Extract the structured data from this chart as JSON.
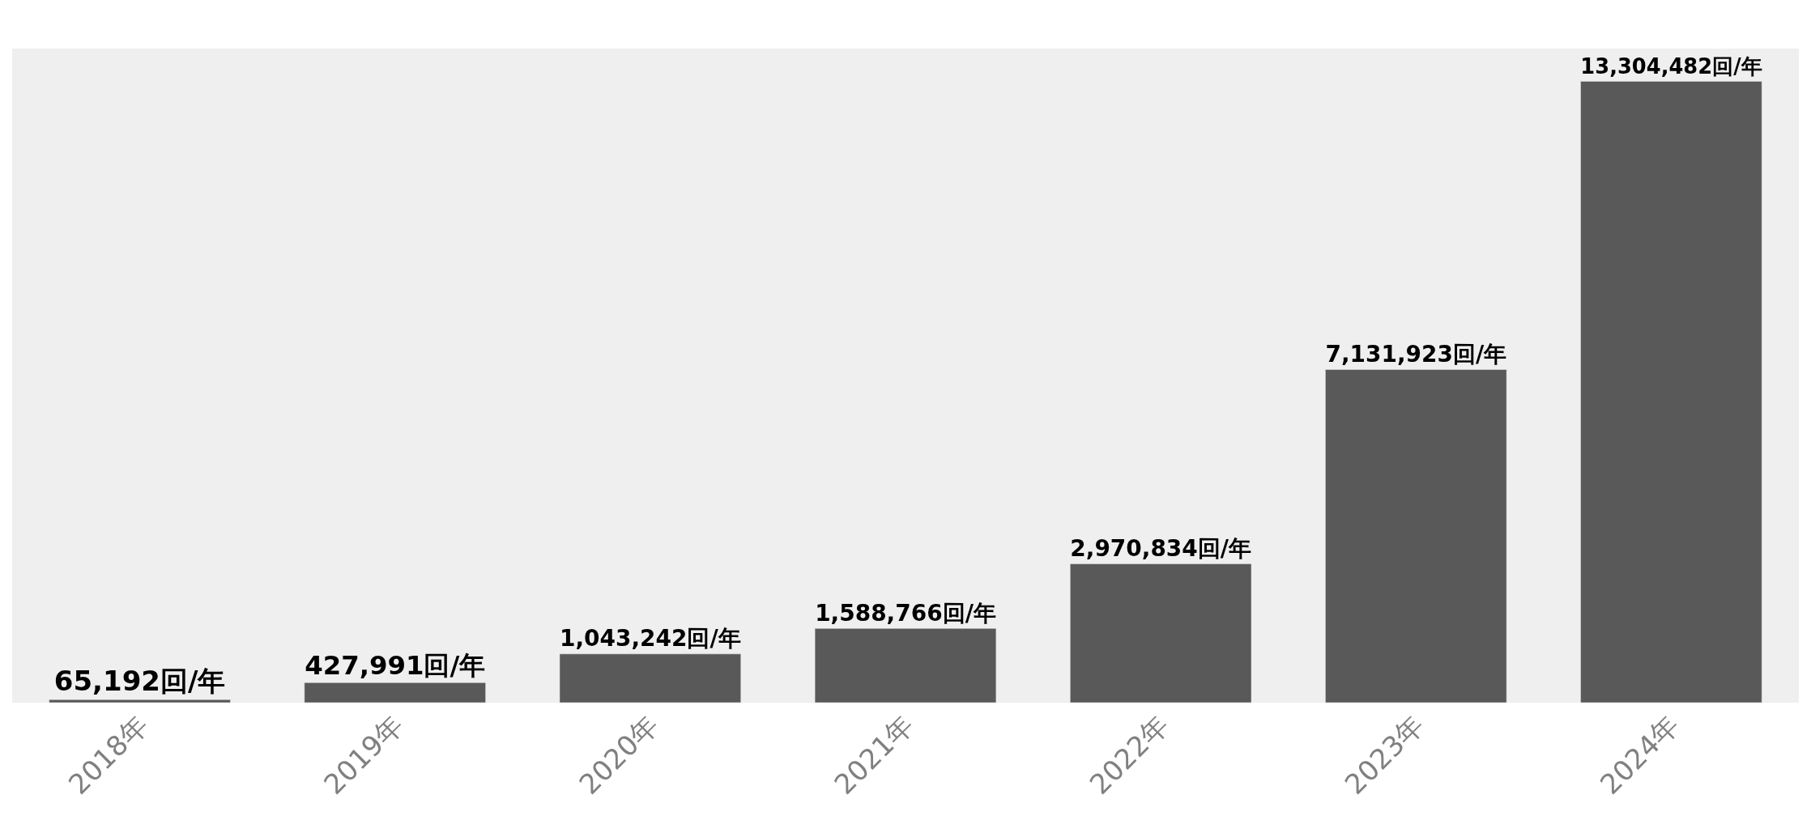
{
  "chart_data": {
    "type": "bar",
    "categories": [
      "2018年",
      "2019年",
      "2020年",
      "2021年",
      "2022年",
      "2023年",
      "2024年"
    ],
    "values": [
      65192,
      427991,
      1043242,
      1588766,
      2970834,
      7131923,
      13304482
    ],
    "value_labels": [
      "65,192回/年",
      "427,991回/年",
      "1,043,242回/年",
      "1,588,766回/年",
      "2,970,834回/年",
      "7,131,923回/年",
      "13,304,482回/年"
    ],
    "color": "#595959"
  }
}
